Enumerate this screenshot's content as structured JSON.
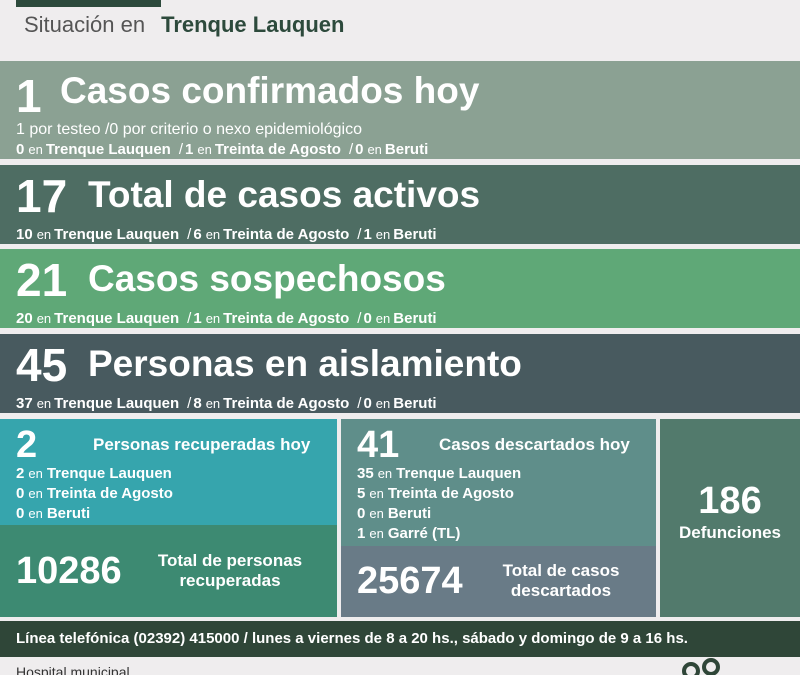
{
  "header": {
    "prefix": "Situación en",
    "city": "Trenque Lauquen"
  },
  "confirmados": {
    "count": "1",
    "title": "Casos confirmados hoy",
    "line1": "1 por testeo  /0 por criterio o nexo epidemiológico",
    "tl": "0",
    "ta": "1",
    "be": "0"
  },
  "activos": {
    "count": "17",
    "title": "Total de casos activos",
    "tl": "10",
    "ta": "6",
    "be": "1"
  },
  "sospechosos": {
    "count": "21",
    "title": "Casos sospechosos",
    "tl": "20",
    "ta": "1",
    "be": "0"
  },
  "aislamiento": {
    "count": "45",
    "title": "Personas en aislamiento",
    "tl": "37",
    "ta": "8",
    "be": "0"
  },
  "places": {
    "tl": "Trenque Lauquen",
    "ta": "Treinta de Agosto",
    "be": "Beruti",
    "ga": "Garré (TL)",
    "en": "en",
    "sep": "/"
  },
  "recuperados": {
    "count": "2",
    "title": "Personas recuperadas hoy",
    "tl": "2",
    "ta": "0",
    "be": "0",
    "total": "10286",
    "total_label_1": "Total de personas",
    "total_label_2": "recuperadas"
  },
  "descartados": {
    "count": "41",
    "title": "Casos descartados hoy",
    "tl": "35",
    "ta": "5",
    "be": "0",
    "ga": "1",
    "total": "25674",
    "total_label_1": "Total de casos",
    "total_label_2": "descartados"
  },
  "defunciones": {
    "count": "186",
    "label": "Defunciones"
  },
  "footer": {
    "text": "Línea telefónica (02392) 415000 / lunes a viernes de 8 a 20 hs., sábado y domingo de 9 a 16 hs."
  },
  "hospital": {
    "label": "Hospital municipal"
  },
  "colors": {
    "dark_green": "#2d4a3c",
    "confirmados": "#8ba193",
    "activos": "#4e6d63",
    "sospechosos": "#5fa877",
    "aislamiento": "#485a5f",
    "recuperados": "#36a5ad",
    "descartados": "#5f8e8a",
    "defunciones": "#527a6c"
  }
}
